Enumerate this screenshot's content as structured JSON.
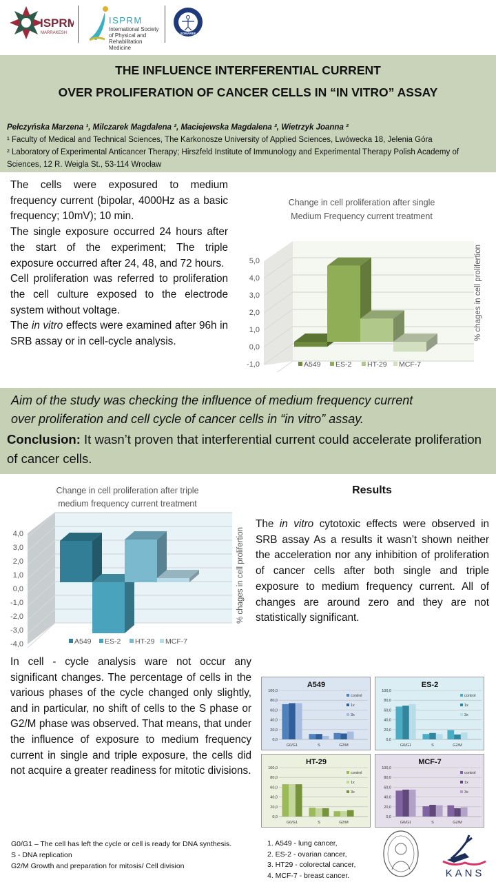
{
  "logos": {
    "congress": {
      "name": "ISPRM",
      "city": "MARRAKESH"
    },
    "isprm": {
      "name": "ISPRM",
      "subtitle": "International Society of Physical and Rehabilitation Medicine"
    },
    "somaref": {
      "name": "SOMAREF"
    },
    "kans": {
      "name": "KANS"
    }
  },
  "header": {
    "title_line1": "THE INFLUENCE INTERFERENTIAL CURRENT",
    "title_line2": "OVER PROLIFERATION OF CANCER CELLS IN “IN VITRO” ASSAY",
    "authors": "Pełczyńska Marzena ¹, Milczarek Magdalena ², Maciejewska Magdalena ², Wietrzyk Joanna ²",
    "affiliation1": "¹ Faculty of Medical and Technical Sciences, The Karkonosze University of Applied Sciences, Lwówecka 18, Jelenia Góra",
    "affiliation2": "² Laboratory of Experimental Anticancer Therapy; Hirszfeld Institute of Immunology and Experimental Therapy Polish Academy of Sciences, 12 R. Weigla St., 53-114 Wrocław"
  },
  "intro": {
    "p1": "The cells were exposured to medium frequency current (bipolar, 4000Hz as a basic frequency; 10mV); 10 min.",
    "p2": "The single exposure occurred 24 hours after the start of the experiment; The triple exposure occurred after 24, 48, and 72 hours.",
    "p3": "Cell proliferation was referred to proliferation the cell culture exposed to the electrode system without voltage.",
    "p4_pre": "The ",
    "p4_italic": "in vitro",
    "p4_post": " effects were examined after 96h in SRB assay or in cell-cycle analysis."
  },
  "aim": {
    "line1": "Aim of the study was checking the influence of medium frequency current",
    "line2": "over proliferation and cell cycle of cancer cells in “in vitro” assay."
  },
  "conclusion": {
    "label": "Conclusion:",
    "text": " It wasn’t proven that interferential current could accelerate proliferation of cancer cells."
  },
  "results": {
    "title": "Results",
    "pre": "The ",
    "italic": "in vitro",
    "post": " cytotoxic effects were observed in SRB assay As a results it wasn’t shown neither the acceleration nor any inhibition of proliferation of cancer cells after both single and triple exposure to medium frequency current. All of changes are around zero and they are not statistically significant."
  },
  "cell_cycle_text": "In cell - cycle analysis ware not occur any significant changes. The percentage of cells in the various phases of the cycle changed only slightly, and in particular, no shift of cells to the S phase or G2/M phase was observed. That means, that under the influence of exposure to medium frequency current in single and triple exposure, the cells did not acquire a greater readiness for mitotic divisions.",
  "phase_notes": [
    "G0/G1 – The cell has left the cycle or cell is ready for DNA synthesis.",
    "S - DNA replication",
    "G2/M Growth and preparation for mitosis/ Cell division"
  ],
  "cell_lines": [
    "1. A549 - lung cancer,",
    "2. ES-2 - ovarian cancer,",
    "3. HT29 - colorectal cancer,",
    "4. MCF-7 - breast cancer."
  ],
  "chart_data": [
    {
      "type": "bar",
      "style": "3d",
      "title": "Change in cell proliferation after single Medium Frequency current treatment",
      "title_line1": "Change in cell proliferation after single",
      "title_line2": "Medium Frequency current treatment",
      "ylabel": "% chages in cell prolifertion",
      "categories": [
        "A549",
        "ES-2",
        "HT-29",
        "MCF-7"
      ],
      "values": [
        -0.3,
        4.6,
        1.4,
        -0.6
      ],
      "colors": [
        "#6e8b3d",
        "#8fae56",
        "#b0c98a",
        "#d3e0c0"
      ],
      "ylim": [
        -1,
        5
      ],
      "yticks": [
        "5,0",
        "4,0",
        "3,0",
        "2,0",
        "1,0",
        "0,0",
        "-1,0"
      ],
      "legend": "bottom",
      "grid": true
    },
    {
      "type": "bar",
      "style": "3d",
      "title": "Change in cell proliferation after triple medium frequency current treatment",
      "title_line1": "Change in cell proliferation after triple",
      "title_line2": "medium frequency current treatment",
      "ylabel": "% chages in cell prolifertion",
      "categories": [
        "A549",
        "ES-2",
        "HT-29",
        "MCF-7"
      ],
      "values": [
        3.0,
        -3.7,
        3.1,
        0.3
      ],
      "colors": [
        "#327e96",
        "#4aa3bd",
        "#7bb9cf",
        "#b7dbe6"
      ],
      "ylim": [
        -4,
        4
      ],
      "yticks": [
        "4,0",
        "3,0",
        "2,0",
        "1,0",
        "0,0",
        "-1,0",
        "-2,0",
        "-3,0",
        "-4,0"
      ],
      "legend": "bottom",
      "grid": true
    },
    {
      "type": "bar",
      "title": "A549",
      "categories": [
        "G0/G1",
        "S",
        "G2/M"
      ],
      "series": [
        {
          "name": "control",
          "values": [
            72,
            11,
            13
          ]
        },
        {
          "name": "1x",
          "values": [
            74,
            11,
            12
          ]
        },
        {
          "name": "3x",
          "values": [
            74,
            7,
            16
          ]
        }
      ],
      "colors": [
        "#4f81bd",
        "#2f5e98",
        "#a7bde0"
      ],
      "background": "#dbe5f1",
      "ylim": [
        0,
        100
      ],
      "yticks": [
        "100,0",
        "80,0",
        "60,0",
        "40,0",
        "20,0",
        "0,0"
      ],
      "legend": "right",
      "grid": true
    },
    {
      "type": "bar",
      "title": "ES-2",
      "categories": [
        "G0/G1",
        "S",
        "G2/M"
      ],
      "series": [
        {
          "name": "control",
          "values": [
            67,
            11,
            19
          ]
        },
        {
          "name": "1x",
          "values": [
            69,
            13,
            10
          ]
        },
        {
          "name": "3x",
          "values": [
            72,
            11,
            14
          ]
        }
      ],
      "colors": [
        "#4bacc6",
        "#31859c",
        "#b6dde8"
      ],
      "background": "#daeef3",
      "ylim": [
        0,
        100
      ],
      "yticks": [
        "100,0",
        "80,0",
        "60,0",
        "40,0",
        "20,0",
        "0,0"
      ],
      "legend": "right",
      "grid": true
    },
    {
      "type": "bar",
      "title": "HT-29",
      "categories": [
        "G0/G1",
        "S",
        "G2/M"
      ],
      "series": [
        {
          "name": "control",
          "values": [
            66,
            18,
            11
          ]
        },
        {
          "name": "1x",
          "values": [
            66,
            17,
            11
          ]
        },
        {
          "name": "3x",
          "values": [
            66,
            17,
            13
          ]
        }
      ],
      "colors": [
        "#9bbb59",
        "#c3d69b",
        "#77933c"
      ],
      "background": "#ebf1de",
      "ylim": [
        0,
        100
      ],
      "yticks": [
        "100,0",
        "80,0",
        "60,0",
        "40,0",
        "20,0",
        "0,0"
      ],
      "legend": "right",
      "grid": true
    },
    {
      "type": "bar",
      "title": "MCF-7",
      "categories": [
        "G0/G1",
        "S",
        "G2/M"
      ],
      "series": [
        {
          "name": "control",
          "values": [
            53,
            21,
            23
          ]
        },
        {
          "name": "1x",
          "values": [
            55,
            24,
            17
          ]
        },
        {
          "name": "3x",
          "values": [
            55,
            23,
            19
          ]
        }
      ],
      "colors": [
        "#8064a2",
        "#60497a",
        "#b2a2c7"
      ],
      "background": "#e5dfec",
      "ylim": [
        0,
        100
      ],
      "yticks": [
        "100,0",
        "80,0",
        "60,0",
        "40,0",
        "20,0",
        "0,0"
      ],
      "legend": "right",
      "grid": true
    }
  ]
}
